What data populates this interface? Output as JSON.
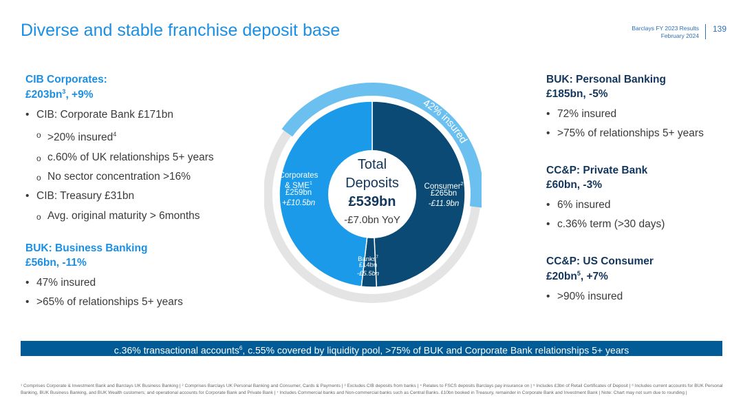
{
  "header": {
    "title": "Diverse and stable franchise deposit base",
    "report_name": "Barclays FY 2023 Results",
    "report_date": "February 2024",
    "page_number": "139"
  },
  "left": {
    "cib": {
      "heading_line1": "CIB Corporates:",
      "heading_amount": "£203bn",
      "heading_sup": "3",
      "heading_change": ", +9%",
      "items": [
        {
          "level": 1,
          "text": "CIB: Corporate Bank £171bn"
        },
        {
          "level": 2,
          "text": ">20% insured",
          "sup": "4"
        },
        {
          "level": 2,
          "text": "c.60% of UK relationships 5+ years"
        },
        {
          "level": 2,
          "text": "No sector concentration >16%"
        },
        {
          "level": 1,
          "text": "CIB: Treasury £31bn"
        },
        {
          "level": 2,
          "text": "Avg. original maturity > 6months"
        }
      ]
    },
    "buk_business": {
      "heading_line1": "BUK: Business Banking",
      "heading_line2": "£56bn, -11%",
      "items": [
        "47% insured",
        ">65% of relationships 5+ years"
      ]
    }
  },
  "right": {
    "buk_personal": {
      "heading_line1": "BUK: Personal Banking",
      "heading_line2": "£185bn, -5%",
      "items": [
        "72% insured",
        ">75% of relationships 5+ years"
      ]
    },
    "private_bank": {
      "heading_line1": "CC&P: Private Bank",
      "heading_line2": "£60bn, -3%",
      "items": [
        "6% insured",
        "c.36% term (>30 days)"
      ]
    },
    "us_consumer": {
      "heading_line1": "CC&P: US Consumer",
      "heading_amount": "£20bn",
      "heading_sup": "5",
      "heading_change": ", +7%",
      "items": [
        ">90% insured"
      ]
    }
  },
  "chart_data": {
    "type": "pie",
    "center": {
      "line1": "Total",
      "line2": "Deposits",
      "total": "£539bn",
      "yoy": "-£7.0bn YoY"
    },
    "total_bn": 539,
    "segments": [
      {
        "name": "Consumer",
        "sup": "2",
        "value": 265,
        "label_value": "£265bn",
        "change": "-£11.9bn",
        "color": "#0a4a75"
      },
      {
        "name": "Banks",
        "sup": "7",
        "value": 14,
        "label_value": "£14bn",
        "change": "-£5.5bn",
        "color": "#0a4a75"
      },
      {
        "name": "Corporates & SME",
        "name_line1": "Corporates",
        "name_line2": "& SME",
        "sup": "1",
        "value": 259,
        "label_value": "£259bn",
        "change": "+£10.5bn",
        "color": "#1a9ae8"
      }
    ],
    "outer_ring": {
      "label": "42% insured",
      "insured_fraction": 0.42,
      "insured_color": "#6cc0ef",
      "track_color": "#e4e4e4"
    }
  },
  "banner": {
    "part1": "c.36% transactional accounts",
    "sup": "6",
    "part2": ", c.55% covered by liquidity pool, >75% of BUK and Corporate Bank relationships 5+ years"
  },
  "footnotes": "¹ Comprises Corporate & Investment Bank and Barclays UK Business Banking | ² Comprises Barclays UK Personal Banking and Consumer, Cards & Payments | ³ Excludes CIB deposits from banks | ⁴ Relates to FSCS deposits Barclays pay insurance on | ⁵ Includes £3bn of Retail Certificates of Deposit | ⁶ Includes current accounts for BUK Personal Banking, BUK Business Banking, and BUK Wealth customers; and operational accounts for Corporate Bank and Private Bank | ⁷ Includes Commercial banks and Non-commercial banks such as Central Banks. £10bn booked in Treasury, remainder in Corporate Bank and Investment Bank | Note: Chart may not sum due to rounding |"
}
